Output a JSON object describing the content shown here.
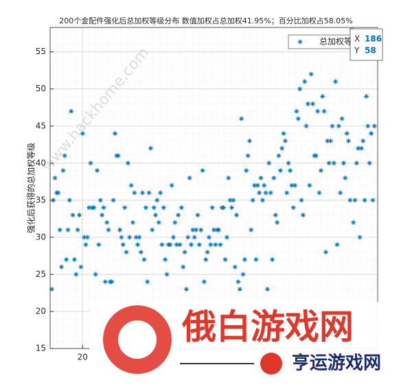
{
  "chart_data": {
    "type": "scatter",
    "title": "200个金配件强化后总加权等级分布    数值加权占总加权41.95%；百分比加权占58.05%",
    "y_label": "强化后获得的总加权等级",
    "series": [
      {
        "name": "总加权等级",
        "color": "#0072bd",
        "marker": "*",
        "x": [
          1,
          2,
          3,
          4,
          5,
          6,
          7,
          8,
          9,
          10,
          11,
          12,
          13,
          14,
          15,
          16,
          17,
          18,
          19,
          20,
          21,
          22,
          23,
          24,
          25,
          26,
          27,
          28,
          29,
          30,
          31,
          32,
          33,
          34,
          35,
          36,
          37,
          38,
          39,
          40,
          41,
          42,
          43,
          44,
          45,
          46,
          47,
          48,
          49,
          50,
          51,
          52,
          53,
          54,
          55,
          56,
          57,
          58,
          59,
          60,
          61,
          62,
          63,
          64,
          65,
          66,
          67,
          68,
          69,
          70,
          71,
          72,
          73,
          74,
          75,
          76,
          77,
          78,
          79,
          80,
          81,
          82,
          83,
          84,
          85,
          86,
          87,
          88,
          89,
          90,
          91,
          92,
          93,
          94,
          95,
          96,
          97,
          98,
          99,
          100,
          101,
          102,
          103,
          104,
          105,
          106,
          107,
          108,
          109,
          110,
          111,
          112,
          113,
          114,
          115,
          116,
          117,
          118,
          119,
          120,
          121,
          122,
          123,
          124,
          125,
          126,
          127,
          128,
          129,
          130,
          131,
          132,
          133,
          134,
          135,
          136,
          137,
          138,
          139,
          140,
          141,
          142,
          143,
          144,
          145,
          146,
          147,
          148,
          149,
          150,
          151,
          152,
          153,
          154,
          155,
          156,
          157,
          158,
          159,
          160,
          161,
          162,
          163,
          164,
          165,
          166,
          167,
          168,
          169,
          170,
          171,
          172,
          173,
          174,
          175,
          176,
          177,
          178,
          179,
          180,
          181,
          182,
          183,
          184,
          185,
          186,
          187,
          188,
          189,
          190,
          191,
          192,
          193,
          194,
          195,
          196,
          197,
          198,
          199,
          200
        ],
        "values": [
          23,
          35,
          38,
          36,
          36,
          31,
          26,
          39,
          41,
          27,
          31,
          35,
          47,
          33,
          27,
          25,
          31,
          33,
          26,
          44,
          30,
          29,
          30,
          34,
          40,
          34,
          34,
          25,
          39,
          29,
          35,
          33,
          34,
          24,
          32,
          31,
          24,
          24,
          35,
          44,
          41,
          41,
          31,
          30,
          29,
          34,
          28,
          40,
          30,
          37,
          32,
          36,
          30,
          29,
          30,
          28,
          36,
          27,
          34,
          24,
          36,
          42,
          31,
          34,
          33,
          35,
          32,
          36,
          29,
          34,
          27,
          25,
          29,
          29,
          37,
          30,
          32,
          29,
          33,
          29,
          34,
          26,
          28,
          23,
          30,
          38,
          29,
          31,
          30,
          31,
          33,
          29,
          31,
          39,
          24,
          27,
          28,
          30,
          29,
          34,
          31,
          29,
          31,
          31,
          29,
          34,
          34,
          27,
          30,
          38,
          35,
          34,
          35,
          26,
          33,
          24,
          23,
          46,
          25,
          27,
          39,
          41,
          43,
          31,
          35,
          37,
          27,
          37,
          36,
          38,
          35,
          37,
          36,
          23,
          40,
          36,
          27,
          38,
          33,
          32,
          41,
          39,
          42,
          44,
          43,
          36,
          40,
          39,
          37,
          34,
          37,
          47,
          46,
          50,
          35,
          33,
          51,
          45,
          48,
          37,
          52,
          48,
          41,
          41,
          47,
          36,
          39,
          49,
          47,
          28,
          43,
          40,
          43,
          45,
          40,
          51,
          29,
          45,
          36,
          46,
          40,
          38,
          44,
          43,
          35,
          58,
          32,
          35,
          40,
          42,
          30,
          42,
          43,
          35,
          49,
          45,
          40,
          44,
          35,
          45
        ]
      }
    ],
    "xlim": [
      0,
      202
    ],
    "xticks": [
      20
    ],
    "ylim": [
      15,
      58.3
    ],
    "yticks": [
      15,
      20,
      25,
      30,
      35,
      40,
      45,
      50,
      55
    ],
    "grid": true,
    "minor_grid": true,
    "legend": "top-right",
    "datatip": {
      "x_label": "X",
      "x": 186,
      "y_label": "Y",
      "y": 58
    },
    "watermarks": [
      "www.hackhome.com",
      "俄白游戏网",
      "亨运游戏网"
    ]
  }
}
